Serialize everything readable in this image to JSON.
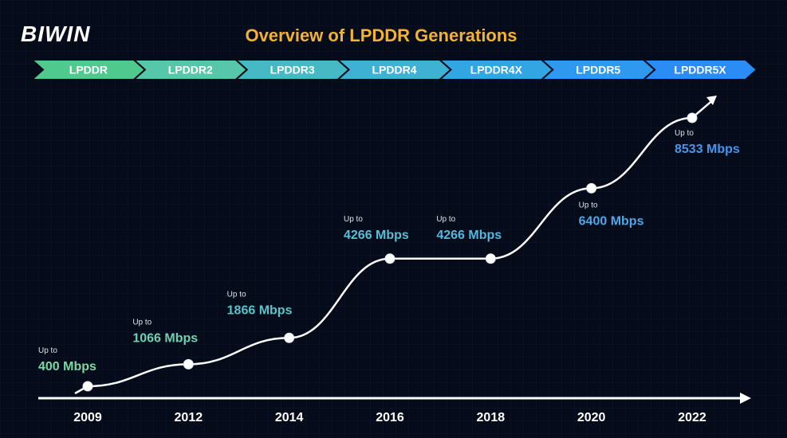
{
  "brand": {
    "logo": "BIWIN"
  },
  "chart_data": {
    "type": "line",
    "title": "Overview of LPDDR Generations",
    "generations": [
      "LPDDR",
      "LPDDR2",
      "LPDDR3",
      "LPDDR4",
      "LPDDR4X",
      "LPDDR5",
      "LPDDR5X"
    ],
    "x": [
      "2009",
      "2012",
      "2014",
      "2016",
      "2018",
      "2020",
      "2022"
    ],
    "values": [
      400,
      1066,
      1866,
      4266,
      4266,
      6400,
      8533
    ],
    "point_prefix": "Up to",
    "point_labels": [
      "400 Mbps",
      "1066 Mbps",
      "1866 Mbps",
      "4266 Mbps",
      "4266 Mbps",
      "6400 Mbps",
      "8533 Mbps"
    ],
    "colors": {
      "background": "#050b18",
      "title": "#f2b233",
      "logo": "#ffffff",
      "curve": "#ffffff",
      "axis": "#ffffff",
      "year": "#ffffff",
      "arrows": [
        "#4fc98d",
        "#56c7a9",
        "#45b9c4",
        "#3fb2d3",
        "#32a6e3",
        "#2f99ef",
        "#2a8cf4"
      ],
      "labels": [
        "#7ad9a2",
        "#6fd0b2",
        "#5bc3c9",
        "#58c0d6",
        "#52b9df",
        "#4ea7e8",
        "#4696ef"
      ]
    },
    "grid": true,
    "legend": "none"
  }
}
